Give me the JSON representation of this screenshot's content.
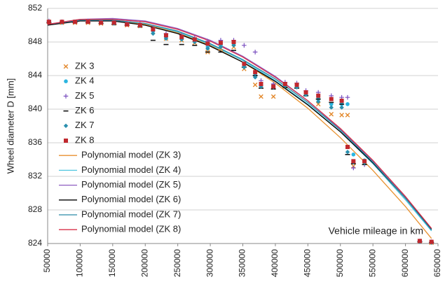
{
  "chart_data": {
    "type": "scatter",
    "y_label": "Wheel diameter D [mm]",
    "x_label": "Vehicle mileage in km",
    "xlim": [
      50000,
      650000
    ],
    "xticks": [
      50000,
      100000,
      150000,
      200000,
      250000,
      300000,
      350000,
      400000,
      450000,
      500000,
      550000,
      600000,
      650000
    ],
    "ylim": [
      824,
      852
    ],
    "yticks": [
      824,
      828,
      832,
      836,
      840,
      844,
      848,
      852
    ],
    "grid": true,
    "legend": "upper left",
    "series": [
      {
        "name": "ZK 3",
        "color": "#e3882b",
        "marker": "x",
        "x": [
          52000,
          72000,
          92000,
          112000,
          132000,
          152000,
          172000,
          192000,
          212000,
          232000,
          256000,
          276000,
          296000,
          316000,
          336000,
          352000,
          369000,
          378000,
          397000,
          415000,
          433000,
          447000,
          466000,
          486000,
          502000,
          511000,
          520000,
          537000,
          622000,
          640000
        ],
        "values": [
          850.4,
          850.3,
          850.3,
          850.3,
          850.2,
          850.2,
          850.0,
          849.9,
          849.2,
          848.4,
          848.2,
          847.9,
          846.8,
          847.2,
          847.4,
          844.8,
          842.9,
          841.5,
          841.5,
          842.7,
          842.8,
          841.8,
          840.6,
          839.4,
          839.3,
          839.3,
          833.2,
          833.6,
          824.3,
          824.1
        ]
      },
      {
        "name": "ZK 4",
        "color": "#2bb5e0",
        "marker": "circle",
        "x": [
          52000,
          72000,
          92000,
          112000,
          132000,
          152000,
          172000,
          192000,
          212000,
          232000,
          256000,
          276000,
          296000,
          316000,
          336000,
          352000,
          369000,
          378000,
          397000,
          415000,
          433000,
          447000,
          466000,
          486000,
          502000,
          511000,
          520000,
          537000,
          622000,
          640000
        ],
        "values": [
          850.4,
          850.4,
          850.4,
          850.4,
          850.3,
          850.2,
          850.1,
          850.0,
          849.3,
          848.6,
          848.4,
          848.1,
          847.4,
          847.6,
          847.8,
          845.2,
          844.0,
          842.9,
          842.8,
          843.0,
          842.8,
          841.9,
          841.2,
          840.6,
          840.6,
          840.6,
          834.6,
          833.9,
          824.3,
          824.2
        ]
      },
      {
        "name": "ZK 5",
        "color": "#7a4fbf",
        "marker": "plus",
        "x": [
          52000,
          72000,
          92000,
          112000,
          132000,
          152000,
          172000,
          192000,
          212000,
          232000,
          256000,
          276000,
          296000,
          316000,
          336000,
          352000,
          369000,
          378000,
          397000,
          415000,
          433000,
          447000,
          466000,
          486000,
          502000,
          511000,
          520000,
          537000,
          622000,
          640000
        ],
        "values": [
          850.5,
          850.4,
          850.4,
          850.5,
          850.4,
          850.3,
          850.2,
          850.1,
          849.7,
          849.0,
          848.8,
          848.5,
          848.1,
          848.2,
          848.2,
          847.6,
          846.8,
          843.4,
          843.0,
          843.2,
          843.1,
          842.2,
          842.0,
          841.6,
          841.4,
          841.4,
          833.0,
          833.4,
          824.3,
          824.2
        ]
      },
      {
        "name": "ZK 6",
        "color": "#111111",
        "marker": "dash",
        "x": [
          52000,
          72000,
          92000,
          112000,
          132000,
          152000,
          172000,
          192000,
          212000,
          232000,
          256000,
          276000,
          296000,
          316000,
          336000,
          352000,
          369000,
          378000,
          397000,
          415000,
          433000,
          447000,
          466000,
          486000,
          502000,
          511000,
          520000,
          537000,
          622000,
          640000
        ],
        "values": [
          850.3,
          850.3,
          850.3,
          850.3,
          850.2,
          850.1,
          850.0,
          849.8,
          848.2,
          847.7,
          847.7,
          847.6,
          846.8,
          846.8,
          847.0,
          845.0,
          844.0,
          842.5,
          842.4,
          842.6,
          842.5,
          841.6,
          841.2,
          840.8,
          840.6,
          834.6,
          833.5,
          833.4,
          824.2,
          824.1
        ]
      },
      {
        "name": "ZK 7",
        "color": "#2a8fae",
        "marker": "diamond",
        "x": [
          52000,
          72000,
          92000,
          112000,
          132000,
          152000,
          172000,
          192000,
          212000,
          232000,
          256000,
          276000,
          296000,
          316000,
          336000,
          352000,
          369000,
          378000,
          397000,
          415000,
          433000,
          447000,
          466000,
          486000,
          502000,
          511000,
          520000,
          537000,
          622000,
          640000
        ],
        "values": [
          850.4,
          850.3,
          850.4,
          850.4,
          850.3,
          850.2,
          850.1,
          849.9,
          849.0,
          848.4,
          848.3,
          848.0,
          847.2,
          847.4,
          847.6,
          845.0,
          843.8,
          842.7,
          842.6,
          842.8,
          842.6,
          841.7,
          840.9,
          840.2,
          840.2,
          834.9,
          833.7,
          833.6,
          824.2,
          824.1
        ]
      },
      {
        "name": "ZK 8",
        "color": "#c0282e",
        "marker": "square",
        "x": [
          52000,
          72000,
          92000,
          112000,
          132000,
          152000,
          172000,
          192000,
          212000,
          232000,
          256000,
          276000,
          296000,
          316000,
          336000,
          352000,
          369000,
          378000,
          397000,
          415000,
          433000,
          447000,
          466000,
          486000,
          502000,
          511000,
          520000,
          537000,
          622000,
          640000
        ],
        "values": [
          850.4,
          850.4,
          850.4,
          850.4,
          850.3,
          850.3,
          850.1,
          850.0,
          849.5,
          848.8,
          848.6,
          848.3,
          847.8,
          847.9,
          848.0,
          845.4,
          844.4,
          843.0,
          842.7,
          843.0,
          842.9,
          842.0,
          841.6,
          841.2,
          841.0,
          835.5,
          833.8,
          833.8,
          824.3,
          824.2
        ]
      },
      {
        "name": "Polynomial model (ZK 3)",
        "color": "#e8912f",
        "marker": "line",
        "x": [
          50000,
          100000,
          150000,
          200000,
          250000,
          300000,
          350000,
          400000,
          450000,
          500000,
          550000,
          600000,
          640000
        ],
        "values": [
          850.1,
          850.6,
          850.6,
          850.1,
          849.1,
          847.6,
          845.6,
          843.1,
          840.1,
          836.6,
          832.7,
          828.4,
          824.6
        ]
      },
      {
        "name": "Polynomial model (ZK 4)",
        "color": "#4fc6e0",
        "marker": "line",
        "x": [
          50000,
          100000,
          150000,
          200000,
          250000,
          300000,
          350000,
          400000,
          450000,
          500000,
          550000,
          600000,
          640000
        ],
        "values": [
          850.1,
          850.6,
          850.6,
          850.2,
          849.2,
          847.7,
          845.8,
          843.4,
          840.6,
          837.3,
          833.5,
          829.2,
          825.5
        ]
      },
      {
        "name": "Polynomial model (ZK 5)",
        "color": "#8e5cc0",
        "marker": "line",
        "x": [
          50000,
          100000,
          150000,
          200000,
          250000,
          300000,
          350000,
          400000,
          450000,
          500000,
          550000,
          600000,
          640000
        ],
        "values": [
          850.1,
          850.7,
          850.8,
          850.5,
          849.6,
          848.2,
          846.3,
          843.9,
          841.0,
          837.6,
          833.8,
          829.5,
          825.7
        ]
      },
      {
        "name": "Polynomial model (ZK 6)",
        "color": "#000000",
        "marker": "line",
        "x": [
          50000,
          100000,
          150000,
          200000,
          250000,
          300000,
          350000,
          400000,
          450000,
          500000,
          550000,
          600000,
          640000
        ],
        "values": [
          850.0,
          850.5,
          850.5,
          850.0,
          849.0,
          847.5,
          845.6,
          843.3,
          840.5,
          837.3,
          833.6,
          829.4,
          825.7
        ]
      },
      {
        "name": "Polynomial model (ZK 7)",
        "color": "#2a8aa6",
        "marker": "line",
        "x": [
          50000,
          100000,
          150000,
          200000,
          250000,
          300000,
          350000,
          400000,
          450000,
          500000,
          550000,
          600000,
          640000
        ],
        "values": [
          850.1,
          850.6,
          850.6,
          850.2,
          849.3,
          847.8,
          845.9,
          843.6,
          840.8,
          837.5,
          833.7,
          829.4,
          825.6
        ]
      },
      {
        "name": "Polynomial model (ZK 8)",
        "color": "#d8304a",
        "marker": "line",
        "x": [
          50000,
          100000,
          150000,
          200000,
          250000,
          300000,
          350000,
          400000,
          450000,
          500000,
          550000,
          600000,
          640000
        ],
        "values": [
          850.1,
          850.7,
          850.7,
          850.4,
          849.5,
          848.1,
          846.2,
          843.8,
          841.0,
          837.7,
          833.9,
          829.6,
          825.8
        ]
      }
    ]
  }
}
